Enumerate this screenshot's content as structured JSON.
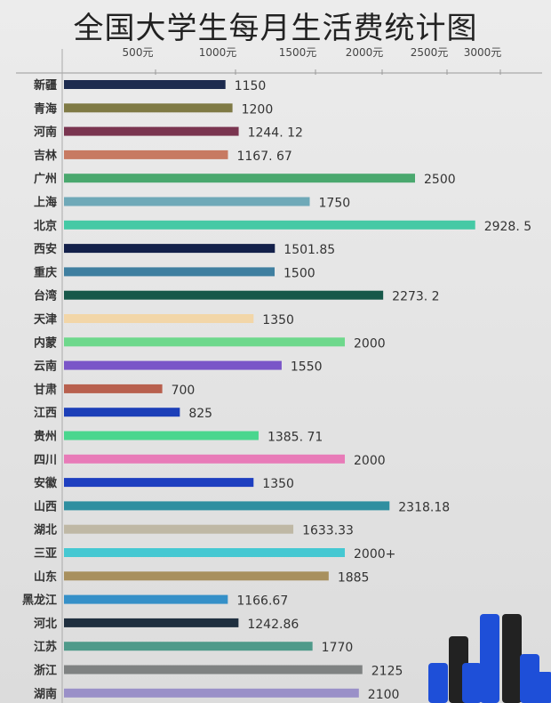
{
  "chart_data": {
    "type": "bar",
    "orientation": "horizontal",
    "title": "全国大学生每月生活费统计图",
    "xlabel": "",
    "ylabel": "",
    "x_tick_labels": [
      "500元",
      "1000元",
      "1500元",
      "2000元",
      "2500元",
      "3000元"
    ],
    "xlim": [
      0,
      3000
    ],
    "grid": false,
    "categories": [
      "新疆",
      "青海",
      "河南",
      "吉林",
      "广州",
      "上海",
      "北京",
      "西安",
      "重庆",
      "台湾",
      "天津",
      "内蒙",
      "云南",
      "甘肃",
      "江西",
      "贵州",
      "四川",
      "安徽",
      "山西",
      "湖北",
      "三亚",
      "山东",
      "黑龙江",
      "河北",
      "江苏",
      "浙江",
      "湖南"
    ],
    "values": [
      1150,
      1200,
      1244.12,
      1167.67,
      2500,
      1750,
      2928.5,
      1501.85,
      1500,
      2273.2,
      1350,
      2000,
      1550,
      700,
      825,
      1385.71,
      2000,
      1350,
      2318.18,
      1633.33,
      2000,
      1885,
      1166.67,
      1242.86,
      1770,
      2125,
      2100
    ],
    "data_labels": [
      "1150",
      "1200",
      "1244. 12",
      "1167. 67",
      "2500",
      "1750",
      "2928. 5",
      "1501.85",
      "1500",
      "2273. 2",
      "1350",
      "2000",
      "1550",
      "700",
      "825",
      "1385. 71",
      "2000",
      "1350",
      "2318.18",
      "1633.33",
      "2000+",
      "1885",
      "1166.67",
      "1242.86",
      "1770",
      "2125",
      "2100"
    ],
    "colors": [
      "#1d2b4f",
      "#7f7a45",
      "#7a3550",
      "#c77a62",
      "#4aa86e",
      "#6fa9b8",
      "#45c9a5",
      "#13204a",
      "#3f7fa0",
      "#17584a",
      "#f2d6a8",
      "#6ed88c",
      "#7a55c8",
      "#b8604e",
      "#1c3fb8",
      "#4ad68e",
      "#e87bb8",
      "#1e3fc0",
      "#2f8fa0",
      "#bfb8a5",
      "#45c8d2",
      "#a8905e",
      "#3590c8",
      "#1f2f3f",
      "#4f9a8a",
      "#7f8282",
      "#9a90c8"
    ]
  }
}
